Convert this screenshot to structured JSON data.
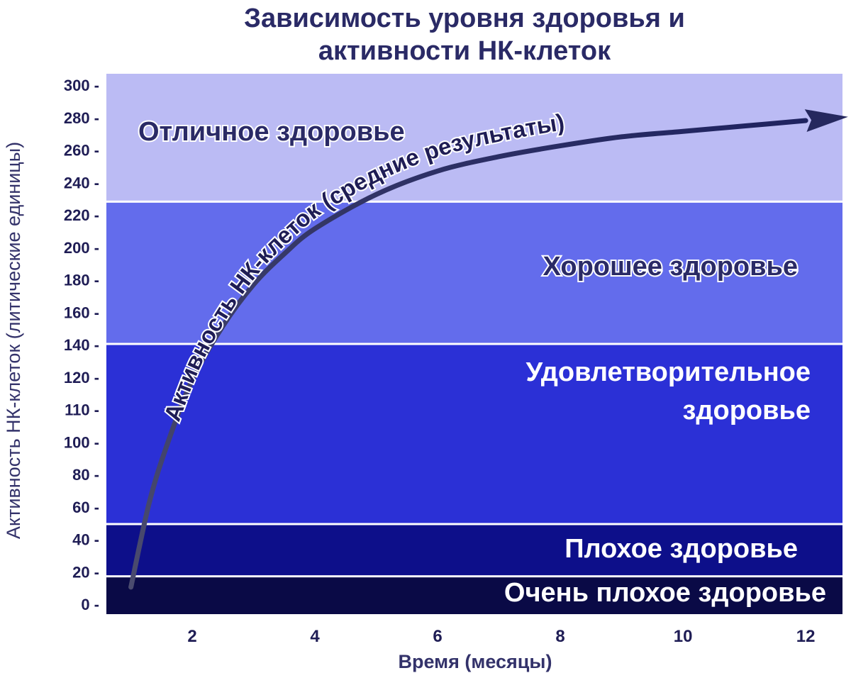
{
  "chart_data": {
    "type": "line",
    "title_lines": [
      "Зависимость уровня здоровья и",
      "активности  НК-клеток"
    ],
    "xlabel": "Время (месяцы)",
    "ylabel": "Активность НК-клеток (литические единицы)",
    "x_ticks": [
      "2",
      "4",
      "6",
      "8",
      "10",
      "12"
    ],
    "y_ticks": [
      "300 -",
      "280 -",
      "260 -",
      "240 -",
      "220 -",
      "200 -",
      "180 -",
      "160 -",
      "140 -",
      "120 -",
      "110 -",
      "100 -",
      "80 -",
      "60 -",
      "40 -",
      "20 -",
      "0 -"
    ],
    "xlim": [
      0.6,
      12.6
    ],
    "ylim": [
      0,
      300
    ],
    "zones": [
      {
        "name": "Очень плохое  здоровье",
        "from": 0,
        "to": 21,
        "color": "#0a0a46",
        "text_color": "#ffffff"
      },
      {
        "name": "Плохое здоровье",
        "from": 21,
        "to": 50,
        "color": "#0d0f8a",
        "text_color": "#ffffff"
      },
      {
        "name": "Удовлетворительное здоровье",
        "lines": [
          "Удовлетворительное",
          "здоровье"
        ],
        "from": 50,
        "to": 150,
        "color": "#2b30d6",
        "text_color": "#ffffff"
      },
      {
        "name": "Хорошее здоровье",
        "from": 150,
        "to": 229,
        "color": "#636cec",
        "text_color": "#2a2a66"
      },
      {
        "name": "Отличное здоровье",
        "from": 229,
        "to": 300,
        "color": "#bbbbf4",
        "text_color": "#2a2a66"
      }
    ],
    "series": [
      {
        "name": "Активность НК-клеток (средние результаты)",
        "x": [
          1.0,
          1.3,
          1.6,
          2.0,
          2.5,
          3.0,
          3.5,
          4.0,
          5.0,
          6.0,
          7.0,
          8.0,
          9.0,
          10.0,
          11.0,
          12.0
        ],
        "y": [
          15,
          62,
          95,
          130,
          160,
          183,
          200,
          214,
          233,
          246,
          254,
          260,
          265,
          268,
          271,
          274
        ],
        "color": "#25285e"
      }
    ],
    "grid": false,
    "legend": "none"
  }
}
